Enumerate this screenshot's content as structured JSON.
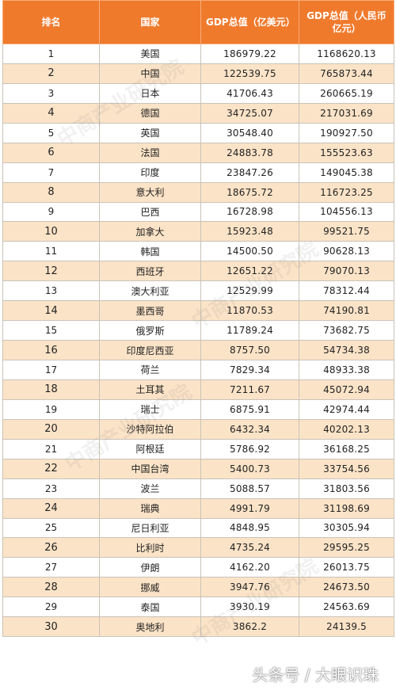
{
  "header": {
    "rank": "排名",
    "country": "国家",
    "gdp_usd": "GDP总值（亿美元）",
    "gdp_cny": "GDP总值（人民币亿元）"
  },
  "rows": [
    {
      "rank": "1",
      "country": "美国",
      "usd": "186979.22",
      "cny": "1168620.13"
    },
    {
      "rank": "2",
      "country": "中国",
      "usd": "122539.75",
      "cny": "765873.44"
    },
    {
      "rank": "3",
      "country": "日本",
      "usd": "41706.43",
      "cny": "260665.19"
    },
    {
      "rank": "4",
      "country": "德国",
      "usd": "34725.07",
      "cny": "217031.69"
    },
    {
      "rank": "5",
      "country": "英国",
      "usd": "30548.40",
      "cny": "190927.50"
    },
    {
      "rank": "6",
      "country": "法国",
      "usd": "24883.78",
      "cny": "155523.63"
    },
    {
      "rank": "7",
      "country": "印度",
      "usd": "23847.26",
      "cny": "149045.38"
    },
    {
      "rank": "8",
      "country": "意大利",
      "usd": "18675.72",
      "cny": "116723.25"
    },
    {
      "rank": "9",
      "country": "巴西",
      "usd": "16728.98",
      "cny": "104556.13"
    },
    {
      "rank": "10",
      "country": "加拿大",
      "usd": "15923.48",
      "cny": "99521.75"
    },
    {
      "rank": "11",
      "country": "韩国",
      "usd": "14500.50",
      "cny": "90628.13"
    },
    {
      "rank": "12",
      "country": "西班牙",
      "usd": "12651.22",
      "cny": "79070.13"
    },
    {
      "rank": "13",
      "country": "澳大利亚",
      "usd": "12529.99",
      "cny": "78312.44"
    },
    {
      "rank": "14",
      "country": "墨西哥",
      "usd": "11870.53",
      "cny": "74190.81"
    },
    {
      "rank": "15",
      "country": "俄罗斯",
      "usd": "11789.24",
      "cny": "73682.75"
    },
    {
      "rank": "16",
      "country": "印度尼西亚",
      "usd": "8757.50",
      "cny": "54734.38"
    },
    {
      "rank": "17",
      "country": "荷兰",
      "usd": "7829.34",
      "cny": "48933.38"
    },
    {
      "rank": "18",
      "country": "土耳其",
      "usd": "7211.67",
      "cny": "45072.94"
    },
    {
      "rank": "19",
      "country": "瑞士",
      "usd": "6875.91",
      "cny": "42974.44"
    },
    {
      "rank": "20",
      "country": "沙特阿拉伯",
      "usd": "6432.34",
      "cny": "40202.13"
    },
    {
      "rank": "21",
      "country": "阿根廷",
      "usd": "5786.92",
      "cny": "36168.25"
    },
    {
      "rank": "22",
      "country": "中国台湾",
      "usd": "5400.73",
      "cny": "33754.56"
    },
    {
      "rank": "23",
      "country": "波兰",
      "usd": "5088.57",
      "cny": "31803.56"
    },
    {
      "rank": "24",
      "country": "瑞典",
      "usd": "4991.79",
      "cny": "31198.69"
    },
    {
      "rank": "25",
      "country": "尼日利亚",
      "usd": "4848.95",
      "cny": "30305.94"
    },
    {
      "rank": "26",
      "country": "比利时",
      "usd": "4735.24",
      "cny": "29595.25"
    },
    {
      "rank": "27",
      "country": "伊朗",
      "usd": "4162.20",
      "cny": "26013.75"
    },
    {
      "rank": "28",
      "country": "挪威",
      "usd": "3947.76",
      "cny": "24673.50"
    },
    {
      "rank": "29",
      "country": "泰国",
      "usd": "3930.19",
      "cny": "24563.69"
    },
    {
      "rank": "30",
      "country": "奥地利",
      "usd": "3862.2",
      "cny": "24139.5"
    }
  ],
  "watermark": "中商产业研究院",
  "signature": "头条号 / 大眼识珠",
  "colors": {
    "header_bg": "#f07a2c",
    "row_alt_bg": "#fbe3c7"
  }
}
